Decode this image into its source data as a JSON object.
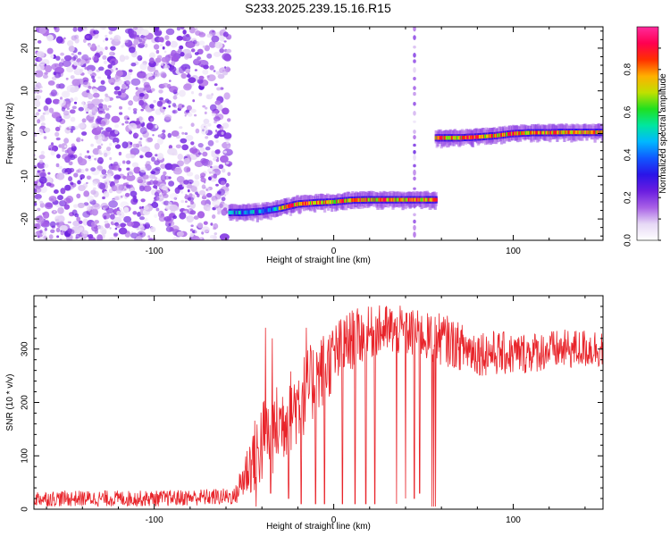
{
  "title": "S233.2025.239.15.16.R15",
  "chart_data": [
    {
      "type": "heatmap",
      "xlabel": "Height of straight line (km)",
      "ylabel": "Frequency (Hz)",
      "xlim": [
        -167,
        150
      ],
      "ylim": [
        -25,
        25
      ],
      "xticks": [
        -100,
        0,
        100
      ],
      "yticks": [
        -20,
        -10,
        0,
        10,
        20
      ],
      "colorbar": {
        "label": "Normalized spectral amplitude",
        "range": [
          0,
          1
        ],
        "ticks": [
          0.0,
          0.2,
          0.4,
          0.6,
          0.8
        ],
        "tick_labels": [
          "0.0",
          "0.2",
          "0.4",
          "0.6",
          "0.8"
        ],
        "colors": [
          "#ffffff",
          "#e6d8f5",
          "#a860e6",
          "#6a1de0",
          "#2a14e8",
          "#1058ff",
          "#00b8ff",
          "#00e6a0",
          "#20e020",
          "#c0e000",
          "#ffb000",
          "#ff3000",
          "#ff0050",
          "#ff2a9c"
        ]
      },
      "noise_region": {
        "x_range": [
          -167,
          -58
        ],
        "y_range": [
          -25,
          25
        ],
        "amplitude_range": [
          0.0,
          0.12
        ]
      },
      "ridge_segments": [
        {
          "x_range": [
            -58,
            -30
          ],
          "frequency_points": [
            [
              -58,
              -18.5
            ],
            [
              -50,
              -18.5
            ],
            [
              -40,
              -18.2
            ],
            [
              -30,
              -17.5
            ]
          ],
          "amplitude_range": [
            0.25,
            0.55
          ]
        },
        {
          "x_range": [
            -30,
            57
          ],
          "frequency_points": [
            [
              -30,
              -17.5
            ],
            [
              -20,
              -16.5
            ],
            [
              -10,
              -16.2
            ],
            [
              0,
              -16
            ],
            [
              10,
              -15.6
            ],
            [
              20,
              -15.5
            ],
            [
              30,
              -15.5
            ],
            [
              40,
              -15.5
            ],
            [
              57,
              -15.5
            ]
          ],
          "amplitude_range": [
            0.6,
            0.95
          ]
        },
        {
          "x_range": [
            57,
            150
          ],
          "frequency_points": [
            [
              57,
              -1
            ],
            [
              70,
              -1
            ],
            [
              80,
              -0.8
            ],
            [
              90,
              -0.5
            ],
            [
              100,
              0
            ],
            [
              110,
              0.2
            ],
            [
              120,
              0.2
            ],
            [
              130,
              0.3
            ],
            [
              150,
              0.3
            ]
          ],
          "amplitude_range": [
            0.6,
            0.95
          ]
        }
      ],
      "vertical_artifact": {
        "x": 45,
        "amplitude": 0.12
      },
      "grid": false
    },
    {
      "type": "line",
      "xlabel": "Height of straight line (km)",
      "ylabel": "SNR (10 * v/v)",
      "xlim": [
        -167,
        150
      ],
      "ylim": [
        0,
        400
      ],
      "xticks": [
        -100,
        0,
        100
      ],
      "yticks": [
        0,
        100,
        200,
        300
      ],
      "series": [
        {
          "color": "#e8242a",
          "envelope": [
            {
              "x": -167,
              "low": 5,
              "high": 35
            },
            {
              "x": -100,
              "low": 5,
              "high": 35
            },
            {
              "x": -55,
              "low": 8,
              "high": 40
            },
            {
              "x": -48,
              "low": 20,
              "high": 130
            },
            {
              "x": -40,
              "low": 40,
              "high": 210
            },
            {
              "x": -30,
              "low": 80,
              "high": 240
            },
            {
              "x": -20,
              "low": 120,
              "high": 280
            },
            {
              "x": -10,
              "low": 170,
              "high": 320
            },
            {
              "x": 0,
              "low": 220,
              "high": 350
            },
            {
              "x": 10,
              "low": 260,
              "high": 375
            },
            {
              "x": 20,
              "low": 280,
              "high": 380
            },
            {
              "x": 30,
              "low": 290,
              "high": 385
            },
            {
              "x": 40,
              "low": 285,
              "high": 380
            },
            {
              "x": 50,
              "low": 280,
              "high": 370
            },
            {
              "x": 57,
              "low": 270,
              "high": 365
            },
            {
              "x": 60,
              "low": 270,
              "high": 370
            },
            {
              "x": 70,
              "low": 260,
              "high": 350
            },
            {
              "x": 80,
              "low": 250,
              "high": 340
            },
            {
              "x": 100,
              "low": 250,
              "high": 330
            },
            {
              "x": 120,
              "low": 260,
              "high": 335
            },
            {
              "x": 150,
              "low": 265,
              "high": 340
            }
          ],
          "dropouts": [
            {
              "x": -43,
              "value": 5
            },
            {
              "x": -35,
              "value": 30
            },
            {
              "x": -25,
              "value": 20
            },
            {
              "x": -18,
              "value": 10
            },
            {
              "x": -10,
              "value": 10
            },
            {
              "x": -5,
              "value": 10
            },
            {
              "x": 5,
              "value": 10
            },
            {
              "x": 12,
              "value": 10
            },
            {
              "x": 18,
              "value": 10
            },
            {
              "x": 23,
              "value": 10
            },
            {
              "x": 30,
              "value": 10
            },
            {
              "x": 35,
              "value": 10
            },
            {
              "x": 40,
              "value": 20
            },
            {
              "x": 45,
              "value": 20
            },
            {
              "x": 48,
              "value": 30
            },
            {
              "x": 55,
              "value": 5
            },
            {
              "x": 56,
              "value": 5
            },
            {
              "x": 57,
              "value": 5
            }
          ],
          "spikes": [
            {
              "x": -38,
              "value": 340
            },
            {
              "x": -34,
              "value": 320
            },
            {
              "x": -15,
              "value": 340
            }
          ]
        }
      ],
      "grid": false
    }
  ]
}
